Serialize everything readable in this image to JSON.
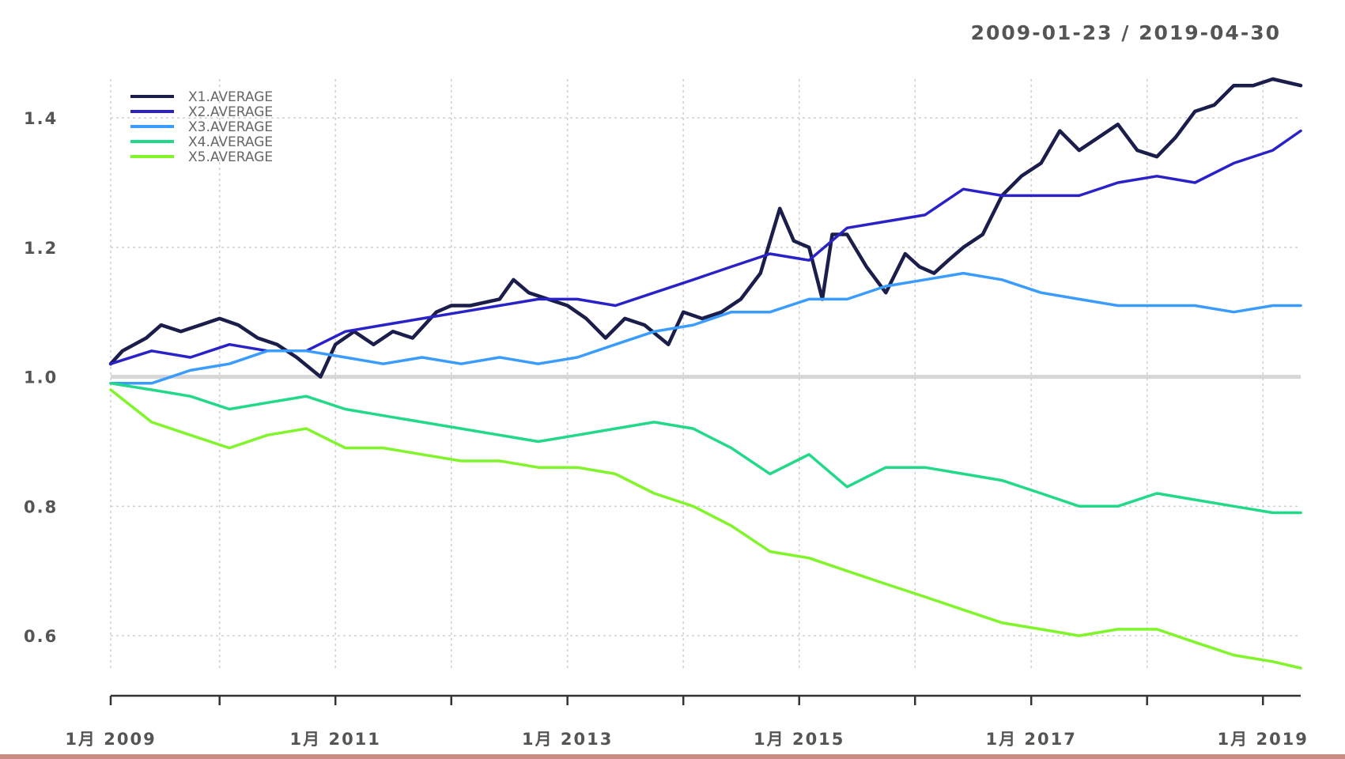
{
  "chart_data": {
    "type": "line",
    "date_range": "2009-01-23 / 2019-04-30",
    "x_range": [
      "2009-01-23",
      "2019-04-30"
    ],
    "ylim": [
      0.55,
      1.46
    ],
    "y_ticks": [
      0.6,
      0.8,
      1.0,
      1.2,
      1.4
    ],
    "y_tick_labels": [
      "0.6",
      "0.8",
      "1.0",
      "1.2",
      "1.4"
    ],
    "x_major_ticks": [
      {
        "date": "2009-01-23",
        "label": "1月 2009"
      },
      {
        "date": "2011-01-01",
        "label": "1月 2011"
      },
      {
        "date": "2013-01-01",
        "label": "1月 2013"
      },
      {
        "date": "2015-01-01",
        "label": "1月 2015"
      },
      {
        "date": "2017-01-01",
        "label": "1月 2017"
      },
      {
        "date": "2019-01-01",
        "label": "1月 2019"
      }
    ],
    "x_minor_ticks": [
      "2010-01-01",
      "2012-01-01",
      "2014-01-01",
      "2016-01-01",
      "2018-01-01"
    ],
    "grid": true,
    "reference_line": 1.0,
    "legend_position": "top-left",
    "series": [
      {
        "name": "X1.AVERAGE",
        "color": "#1b1d4a",
        "width": 4.5,
        "points": [
          [
            "2009-01-23",
            1.02
          ],
          [
            "2009-03-01",
            1.04
          ],
          [
            "2009-05-15",
            1.06
          ],
          [
            "2009-07-01",
            1.08
          ],
          [
            "2009-09-01",
            1.07
          ],
          [
            "2009-11-01",
            1.08
          ],
          [
            "2010-01-01",
            1.09
          ],
          [
            "2010-03-01",
            1.08
          ],
          [
            "2010-05-01",
            1.06
          ],
          [
            "2010-07-01",
            1.05
          ],
          [
            "2010-09-01",
            1.03
          ],
          [
            "2010-11-15",
            1.0
          ],
          [
            "2011-01-01",
            1.05
          ],
          [
            "2011-03-01",
            1.07
          ],
          [
            "2011-05-01",
            1.05
          ],
          [
            "2011-07-01",
            1.07
          ],
          [
            "2011-09-01",
            1.06
          ],
          [
            "2011-11-15",
            1.1
          ],
          [
            "2012-01-01",
            1.11
          ],
          [
            "2012-03-01",
            1.11
          ],
          [
            "2012-06-01",
            1.12
          ],
          [
            "2012-07-15",
            1.15
          ],
          [
            "2012-09-01",
            1.13
          ],
          [
            "2012-11-01",
            1.12
          ],
          [
            "2013-01-01",
            1.11
          ],
          [
            "2013-03-01",
            1.09
          ],
          [
            "2013-05-01",
            1.06
          ],
          [
            "2013-07-01",
            1.09
          ],
          [
            "2013-09-01",
            1.08
          ],
          [
            "2013-11-15",
            1.05
          ],
          [
            "2014-01-01",
            1.1
          ],
          [
            "2014-03-01",
            1.09
          ],
          [
            "2014-05-01",
            1.1
          ],
          [
            "2014-07-01",
            1.12
          ],
          [
            "2014-09-01",
            1.16
          ],
          [
            "2014-11-01",
            1.26
          ],
          [
            "2014-12-15",
            1.21
          ],
          [
            "2015-02-01",
            1.2
          ],
          [
            "2015-03-15",
            1.12
          ],
          [
            "2015-04-15",
            1.22
          ],
          [
            "2015-06-01",
            1.22
          ],
          [
            "2015-08-01",
            1.17
          ],
          [
            "2015-10-01",
            1.13
          ],
          [
            "2015-12-01",
            1.19
          ],
          [
            "2016-01-15",
            1.17
          ],
          [
            "2016-03-01",
            1.16
          ],
          [
            "2016-04-15",
            1.18
          ],
          [
            "2016-06-01",
            1.2
          ],
          [
            "2016-08-01",
            1.22
          ],
          [
            "2016-10-01",
            1.28
          ],
          [
            "2016-12-01",
            1.31
          ],
          [
            "2017-02-01",
            1.33
          ],
          [
            "2017-04-01",
            1.38
          ],
          [
            "2017-06-01",
            1.35
          ],
          [
            "2017-08-01",
            1.37
          ],
          [
            "2017-10-01",
            1.39
          ],
          [
            "2017-12-01",
            1.35
          ],
          [
            "2018-02-01",
            1.34
          ],
          [
            "2018-04-01",
            1.37
          ],
          [
            "2018-06-01",
            1.41
          ],
          [
            "2018-08-01",
            1.42
          ],
          [
            "2018-10-01",
            1.45
          ],
          [
            "2018-12-01",
            1.45
          ],
          [
            "2019-02-01",
            1.46
          ],
          [
            "2019-04-30",
            1.45
          ]
        ]
      },
      {
        "name": "X2.AVERAGE",
        "color": "#2a22c8",
        "width": 3.5,
        "points": [
          [
            "2009-01-23",
            1.02
          ],
          [
            "2009-06-01",
            1.04
          ],
          [
            "2009-10-01",
            1.03
          ],
          [
            "2010-02-01",
            1.05
          ],
          [
            "2010-06-01",
            1.04
          ],
          [
            "2010-10-01",
            1.04
          ],
          [
            "2011-02-01",
            1.07
          ],
          [
            "2011-06-01",
            1.08
          ],
          [
            "2011-10-01",
            1.09
          ],
          [
            "2012-02-01",
            1.1
          ],
          [
            "2012-06-01",
            1.11
          ],
          [
            "2012-10-01",
            1.12
          ],
          [
            "2013-02-01",
            1.12
          ],
          [
            "2013-06-01",
            1.11
          ],
          [
            "2013-10-01",
            1.13
          ],
          [
            "2014-02-01",
            1.15
          ],
          [
            "2014-06-01",
            1.17
          ],
          [
            "2014-10-01",
            1.19
          ],
          [
            "2015-02-01",
            1.18
          ],
          [
            "2015-06-01",
            1.23
          ],
          [
            "2015-10-01",
            1.24
          ],
          [
            "2016-02-01",
            1.25
          ],
          [
            "2016-06-01",
            1.29
          ],
          [
            "2016-10-01",
            1.28
          ],
          [
            "2017-02-01",
            1.28
          ],
          [
            "2017-06-01",
            1.28
          ],
          [
            "2017-10-01",
            1.3
          ],
          [
            "2018-02-01",
            1.31
          ],
          [
            "2018-06-01",
            1.3
          ],
          [
            "2018-10-01",
            1.33
          ],
          [
            "2019-02-01",
            1.35
          ],
          [
            "2019-04-30",
            1.38
          ]
        ]
      },
      {
        "name": "X3.AVERAGE",
        "color": "#3a9cff",
        "width": 3.5,
        "points": [
          [
            "2009-01-23",
            0.99
          ],
          [
            "2009-06-01",
            0.99
          ],
          [
            "2009-10-01",
            1.01
          ],
          [
            "2010-02-01",
            1.02
          ],
          [
            "2010-06-01",
            1.04
          ],
          [
            "2010-10-01",
            1.04
          ],
          [
            "2011-02-01",
            1.03
          ],
          [
            "2011-06-01",
            1.02
          ],
          [
            "2011-10-01",
            1.03
          ],
          [
            "2012-02-01",
            1.02
          ],
          [
            "2012-06-01",
            1.03
          ],
          [
            "2012-10-01",
            1.02
          ],
          [
            "2013-02-01",
            1.03
          ],
          [
            "2013-06-01",
            1.05
          ],
          [
            "2013-10-01",
            1.07
          ],
          [
            "2014-02-01",
            1.08
          ],
          [
            "2014-06-01",
            1.1
          ],
          [
            "2014-10-01",
            1.1
          ],
          [
            "2015-02-01",
            1.12
          ],
          [
            "2015-06-01",
            1.12
          ],
          [
            "2015-10-01",
            1.14
          ],
          [
            "2016-02-01",
            1.15
          ],
          [
            "2016-06-01",
            1.16
          ],
          [
            "2016-10-01",
            1.15
          ],
          [
            "2017-02-01",
            1.13
          ],
          [
            "2017-06-01",
            1.12
          ],
          [
            "2017-10-01",
            1.11
          ],
          [
            "2018-02-01",
            1.11
          ],
          [
            "2018-06-01",
            1.11
          ],
          [
            "2018-10-01",
            1.1
          ],
          [
            "2019-02-01",
            1.11
          ],
          [
            "2019-04-30",
            1.11
          ]
        ]
      },
      {
        "name": "X4.AVERAGE",
        "color": "#22d98a",
        "width": 3.5,
        "points": [
          [
            "2009-01-23",
            0.99
          ],
          [
            "2009-06-01",
            0.98
          ],
          [
            "2009-10-01",
            0.97
          ],
          [
            "2010-02-01",
            0.95
          ],
          [
            "2010-06-01",
            0.96
          ],
          [
            "2010-10-01",
            0.97
          ],
          [
            "2011-02-01",
            0.95
          ],
          [
            "2011-06-01",
            0.94
          ],
          [
            "2011-10-01",
            0.93
          ],
          [
            "2012-02-01",
            0.92
          ],
          [
            "2012-06-01",
            0.91
          ],
          [
            "2012-10-01",
            0.9
          ],
          [
            "2013-02-01",
            0.91
          ],
          [
            "2013-06-01",
            0.92
          ],
          [
            "2013-10-01",
            0.93
          ],
          [
            "2014-02-01",
            0.92
          ],
          [
            "2014-06-01",
            0.89
          ],
          [
            "2014-10-01",
            0.85
          ],
          [
            "2015-02-01",
            0.88
          ],
          [
            "2015-06-01",
            0.83
          ],
          [
            "2015-10-01",
            0.86
          ],
          [
            "2016-02-01",
            0.86
          ],
          [
            "2016-06-01",
            0.85
          ],
          [
            "2016-10-01",
            0.84
          ],
          [
            "2017-02-01",
            0.82
          ],
          [
            "2017-06-01",
            0.8
          ],
          [
            "2017-10-01",
            0.8
          ],
          [
            "2018-02-01",
            0.82
          ],
          [
            "2018-06-01",
            0.81
          ],
          [
            "2018-10-01",
            0.8
          ],
          [
            "2019-02-01",
            0.79
          ],
          [
            "2019-04-30",
            0.79
          ]
        ]
      },
      {
        "name": "X5.AVERAGE",
        "color": "#7ff52a",
        "width": 3.5,
        "points": [
          [
            "2009-01-23",
            0.98
          ],
          [
            "2009-06-01",
            0.93
          ],
          [
            "2009-10-01",
            0.91
          ],
          [
            "2010-02-01",
            0.89
          ],
          [
            "2010-06-01",
            0.91
          ],
          [
            "2010-10-01",
            0.92
          ],
          [
            "2011-02-01",
            0.89
          ],
          [
            "2011-06-01",
            0.89
          ],
          [
            "2011-10-01",
            0.88
          ],
          [
            "2012-02-01",
            0.87
          ],
          [
            "2012-06-01",
            0.87
          ],
          [
            "2012-10-01",
            0.86
          ],
          [
            "2013-02-01",
            0.86
          ],
          [
            "2013-06-01",
            0.85
          ],
          [
            "2013-10-01",
            0.82
          ],
          [
            "2014-02-01",
            0.8
          ],
          [
            "2014-06-01",
            0.77
          ],
          [
            "2014-10-01",
            0.73
          ],
          [
            "2015-02-01",
            0.72
          ],
          [
            "2015-06-01",
            0.7
          ],
          [
            "2015-10-01",
            0.68
          ],
          [
            "2016-02-01",
            0.66
          ],
          [
            "2016-06-01",
            0.64
          ],
          [
            "2016-10-01",
            0.62
          ],
          [
            "2017-02-01",
            0.61
          ],
          [
            "2017-06-01",
            0.6
          ],
          [
            "2017-10-01",
            0.61
          ],
          [
            "2018-02-01",
            0.61
          ],
          [
            "2018-06-01",
            0.59
          ],
          [
            "2018-10-01",
            0.57
          ],
          [
            "2019-02-01",
            0.56
          ],
          [
            "2019-04-30",
            0.55
          ]
        ]
      }
    ]
  }
}
